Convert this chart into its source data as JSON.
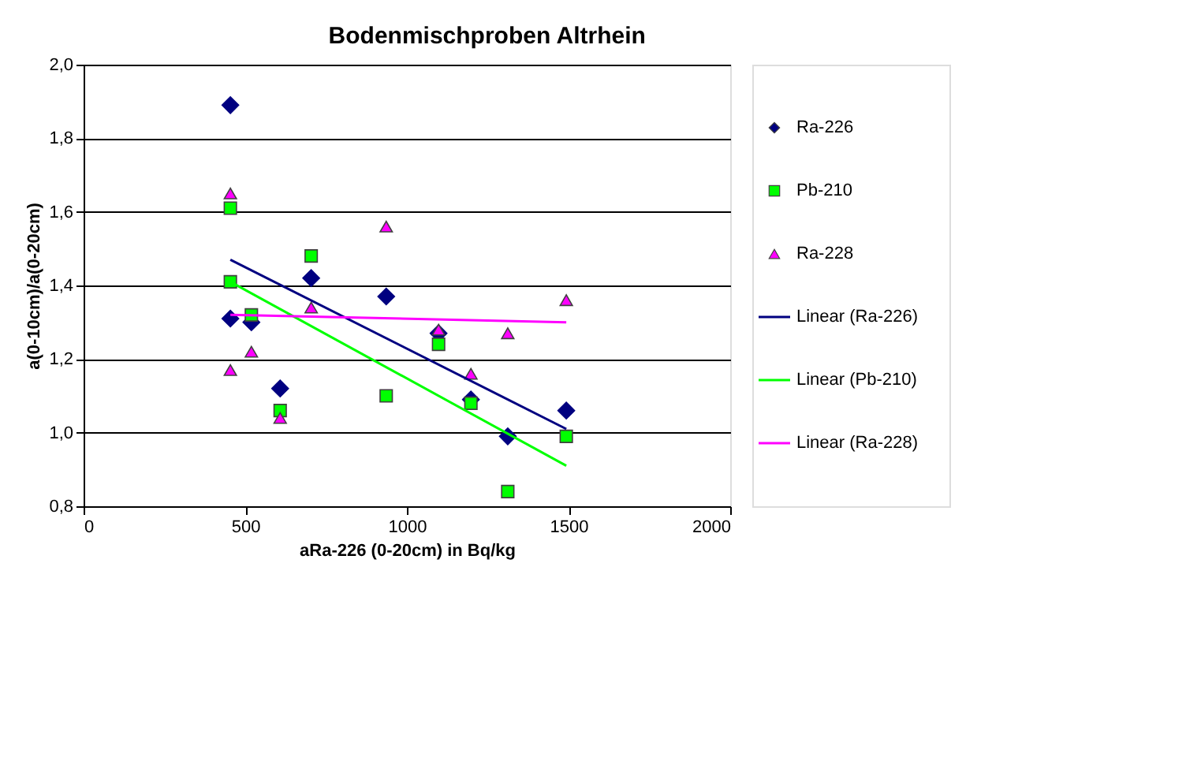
{
  "chart_data": {
    "type": "scatter",
    "title": "Bodenmischproben Altrhein",
    "xlabel": "aRa-226 (0-20cm) in Bq/kg",
    "ylabel": "a(0-10cm)/a(0-20cm)",
    "xlim": [
      0,
      2000
    ],
    "xticks": [
      0,
      500,
      {
        "value": 1000,
        "label": "1000"
      },
      {
        "value": 1500,
        "label": "1500"
      },
      {
        "value": 2000,
        "label": "2000"
      }
    ],
    "ylim": [
      0.8,
      2.0
    ],
    "yticks": [
      {
        "value": 0.8,
        "label": "0,8"
      },
      {
        "value": 1.0,
        "label": "1,0"
      },
      {
        "value": 1.2,
        "label": "1,2"
      },
      {
        "value": 1.4,
        "label": "1,4"
      },
      {
        "value": 1.6,
        "label": "1,6"
      },
      {
        "value": 1.8,
        "label": "1,8"
      },
      {
        "value": 2.0,
        "label": "2,0"
      }
    ],
    "grid": "y",
    "legend": "right",
    "series": [
      {
        "name": "Ra-226",
        "type": "scatter",
        "marker": "diamond",
        "color": "#000080",
        "x": [
          454,
          454,
          519,
          608,
          704,
          936,
          1098,
          1198,
          1312,
          1493
        ],
        "values": [
          1.89,
          1.31,
          1.3,
          1.12,
          1.42,
          1.37,
          1.27,
          1.09,
          0.99,
          1.06
        ]
      },
      {
        "name": "Pb-210",
        "type": "scatter",
        "marker": "square",
        "color": "#00ff00",
        "x": [
          454,
          454,
          519,
          608,
          704,
          936,
          1098,
          1198,
          1312,
          1493
        ],
        "values": [
          1.61,
          1.41,
          1.32,
          1.06,
          1.48,
          1.1,
          1.24,
          1.08,
          0.84,
          0.99
        ]
      },
      {
        "name": "Ra-228",
        "type": "scatter",
        "marker": "triangle",
        "color": "#ff00ff",
        "x": [
          454,
          454,
          519,
          608,
          704,
          936,
          1098,
          1198,
          1312,
          1493
        ],
        "values": [
          1.65,
          1.17,
          1.22,
          1.04,
          1.34,
          1.56,
          1.28,
          1.16,
          1.27,
          1.36
        ]
      },
      {
        "name": "Linear (Ra-226)",
        "type": "line",
        "color": "#000080",
        "x": [
          454,
          1493
        ],
        "values": [
          1.47,
          1.01
        ]
      },
      {
        "name": "Linear (Pb-210)",
        "type": "line",
        "color": "#00ff00",
        "x": [
          454,
          1493
        ],
        "values": [
          1.41,
          0.91
        ]
      },
      {
        "name": "Linear (Ra-228)",
        "type": "line",
        "color": "#ff00ff",
        "x": [
          454,
          1493
        ],
        "values": [
          1.32,
          1.3
        ]
      }
    ]
  }
}
